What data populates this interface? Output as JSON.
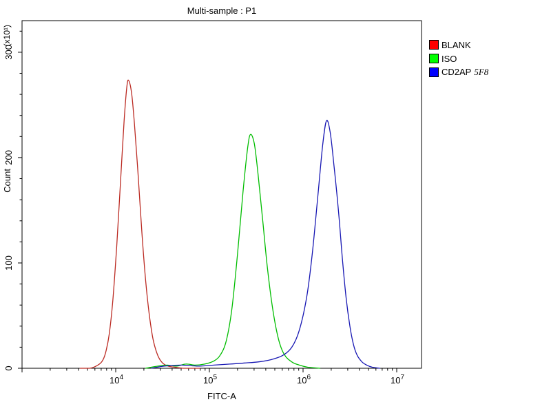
{
  "title": "Multi-sample : P1",
  "axes": {
    "x": {
      "label": "FITC-A",
      "scale": "log10",
      "log_min": 3.0,
      "log_max": 7.265,
      "major_tick_exponents": [
        3,
        4,
        5,
        6,
        7
      ],
      "labeled_exponents": [
        4,
        5,
        6,
        7
      ],
      "tick_label_base": "10"
    },
    "y": {
      "label": "Count",
      "unit_multiplier": "(x10¹)",
      "min": 0,
      "max": 330,
      "major_ticks": [
        0,
        100,
        200,
        300
      ],
      "minor_step": 20
    }
  },
  "legend": {
    "position": "right",
    "items": [
      {
        "label": "BLANK",
        "swatch_color": "#ff0000"
      },
      {
        "label": "ISO",
        "swatch_color": "#00ff00"
      },
      {
        "label": "CD2AP",
        "suffix_italic": "5F8",
        "swatch_color": "#0000ff"
      }
    ]
  },
  "chart_data": {
    "type": "line",
    "subtype": "flow-cytometry-histogram-overlay",
    "title": "Multi-sample : P1",
    "xlabel": "FITC-A",
    "ylabel": "Count",
    "x_scale": "log10",
    "xlim_log10": [
      3.0,
      7.265
    ],
    "ylim": [
      0,
      330
    ],
    "grid": false,
    "legend_position": "right",
    "series": [
      {
        "name": "BLANK",
        "color": "#bb2a22",
        "peak": {
          "x": 13000,
          "count": 273
        },
        "points_log10x_count": [
          [
            3.62,
            0
          ],
          [
            3.72,
            0
          ],
          [
            3.79,
            2
          ],
          [
            3.85,
            6
          ],
          [
            3.89,
            14
          ],
          [
            3.93,
            32
          ],
          [
            3.97,
            65
          ],
          [
            4.01,
            115
          ],
          [
            4.05,
            175
          ],
          [
            4.09,
            235
          ],
          [
            4.12,
            268
          ],
          [
            4.14,
            273
          ],
          [
            4.17,
            261
          ],
          [
            4.2,
            232
          ],
          [
            4.24,
            183
          ],
          [
            4.28,
            128
          ],
          [
            4.32,
            83
          ],
          [
            4.36,
            50
          ],
          [
            4.4,
            27
          ],
          [
            4.45,
            12
          ],
          [
            4.5,
            5
          ],
          [
            4.56,
            2
          ],
          [
            4.63,
            1
          ],
          [
            4.72,
            0
          ],
          [
            4.9,
            0
          ]
        ]
      },
      {
        "name": "ISO",
        "color": "#00bd00",
        "peak": {
          "x": 270000,
          "count": 222
        },
        "points_log10x_count": [
          [
            4.32,
            0
          ],
          [
            4.45,
            2
          ],
          [
            4.55,
            3
          ],
          [
            4.65,
            2
          ],
          [
            4.75,
            4
          ],
          [
            4.85,
            3
          ],
          [
            4.95,
            4
          ],
          [
            5.05,
            7
          ],
          [
            5.12,
            13
          ],
          [
            5.18,
            26
          ],
          [
            5.24,
            56
          ],
          [
            5.3,
            108
          ],
          [
            5.36,
            168
          ],
          [
            5.41,
            210
          ],
          [
            5.44,
            222
          ],
          [
            5.48,
            213
          ],
          [
            5.52,
            184
          ],
          [
            5.57,
            140
          ],
          [
            5.62,
            95
          ],
          [
            5.68,
            54
          ],
          [
            5.74,
            27
          ],
          [
            5.8,
            13
          ],
          [
            5.88,
            6
          ],
          [
            5.96,
            3
          ],
          [
            6.05,
            1
          ],
          [
            6.18,
            0
          ]
        ]
      },
      {
        "name": "CD2AP 5F8",
        "color": "#1717b3",
        "peak": {
          "x": 1780000,
          "count": 235
        },
        "points_log10x_count": [
          [
            4.38,
            0
          ],
          [
            4.52,
            2
          ],
          [
            4.7,
            3
          ],
          [
            4.88,
            2
          ],
          [
            5.05,
            3
          ],
          [
            5.22,
            4
          ],
          [
            5.38,
            5
          ],
          [
            5.52,
            6
          ],
          [
            5.65,
            8
          ],
          [
            5.78,
            12
          ],
          [
            5.88,
            20
          ],
          [
            5.96,
            36
          ],
          [
            6.04,
            68
          ],
          [
            6.1,
            110
          ],
          [
            6.16,
            165
          ],
          [
            6.21,
            212
          ],
          [
            6.25,
            235
          ],
          [
            6.29,
            224
          ],
          [
            6.33,
            193
          ],
          [
            6.38,
            148
          ],
          [
            6.42,
            104
          ],
          [
            6.46,
            67
          ],
          [
            6.5,
            40
          ],
          [
            6.54,
            22
          ],
          [
            6.58,
            12
          ],
          [
            6.63,
            6
          ],
          [
            6.68,
            3
          ],
          [
            6.74,
            1
          ],
          [
            6.82,
            0
          ]
        ]
      }
    ]
  }
}
